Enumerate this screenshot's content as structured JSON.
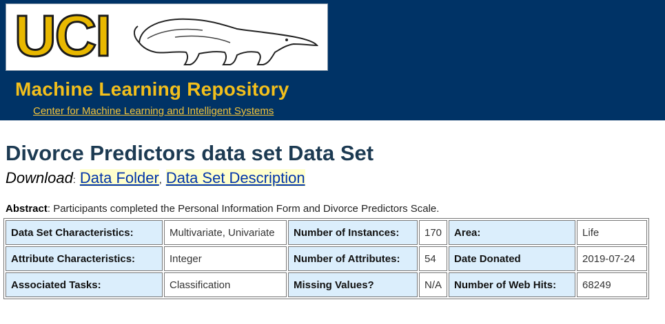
{
  "header": {
    "logo_text": "UCI",
    "logo_icon": "anteater-mascot",
    "repo_title": "Machine Learning Repository",
    "center_link": "Center for Machine Learning and Intelligent Systems"
  },
  "dataset": {
    "title": "Divorce Predictors data set Data Set",
    "download_label": "Download",
    "download_colon": ":",
    "download_sep": ",",
    "links": [
      "Data Folder",
      "Data Set Description"
    ]
  },
  "abstract": {
    "label": "Abstract",
    "text": ": Participants completed the Personal Information Form and Divorce Predictors Scale."
  },
  "info_table": {
    "rows": [
      [
        {
          "key": "Data Set Characteristics:",
          "value": "Multivariate, Univariate"
        },
        {
          "key": "Number of Instances:",
          "value": "170"
        },
        {
          "key": "Area:",
          "value": "Life"
        }
      ],
      [
        {
          "key": "Attribute Characteristics:",
          "value": "Integer"
        },
        {
          "key": "Number of Attributes:",
          "value": "54"
        },
        {
          "key": "Date Donated",
          "value": "2019-07-24"
        }
      ],
      [
        {
          "key": "Associated Tasks:",
          "value": "Classification"
        },
        {
          "key": "Missing Values?",
          "value": "N/A"
        },
        {
          "key": "Number of Web Hits:",
          "value": "68249"
        }
      ]
    ]
  },
  "colors": {
    "banner_bg": "#003366",
    "accent_gold": "#f2bf1c",
    "key_cell_bg": "#dbeefc",
    "link_highlight": "#ffffcc"
  }
}
